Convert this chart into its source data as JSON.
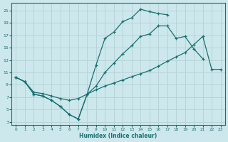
{
  "xlabel": "Humidex (Indice chaleur)",
  "bg_color": "#cce8ec",
  "grid_color": "#b8d4d8",
  "line_color": "#1a7070",
  "xlim": [
    -0.5,
    23.5
  ],
  "ylim": [
    2.5,
    22.2
  ],
  "xticks": [
    0,
    1,
    2,
    3,
    4,
    5,
    6,
    7,
    8,
    9,
    10,
    11,
    12,
    13,
    14,
    15,
    16,
    17,
    18,
    19,
    20,
    21,
    22,
    23
  ],
  "yticks": [
    3,
    5,
    7,
    9,
    11,
    13,
    15,
    17,
    19,
    21
  ],
  "curve_zigzag_x": [
    0,
    1,
    2,
    3,
    4,
    5,
    6,
    7,
    8,
    9,
    10,
    11,
    12,
    13,
    14,
    15,
    16,
    17
  ],
  "curve_zigzag_y": [
    10.2,
    9.5,
    7.5,
    7.2,
    6.5,
    5.5,
    4.2,
    3.5,
    7.5,
    12.2,
    16.5,
    17.5,
    19.2,
    19.8,
    21.2,
    20.8,
    20.5,
    20.3
  ],
  "curve_mid_x": [
    0,
    1,
    2,
    3,
    4,
    5,
    6,
    7,
    8,
    9,
    10,
    11,
    12,
    13,
    14,
    15,
    16,
    17,
    18,
    19,
    20,
    21
  ],
  "curve_mid_y": [
    10.2,
    9.5,
    7.5,
    7.2,
    6.5,
    5.5,
    4.2,
    3.5,
    7.5,
    8.8,
    11.0,
    12.5,
    14.0,
    15.3,
    16.8,
    17.2,
    18.5,
    18.5,
    16.5,
    16.8,
    14.8,
    13.2
  ],
  "curve_flat_x": [
    0,
    1,
    2,
    3,
    4,
    5,
    6,
    7,
    8,
    9,
    10,
    11,
    12,
    13,
    14,
    15,
    16,
    17,
    18,
    19,
    20,
    21,
    22,
    23
  ],
  "curve_flat_y": [
    10.2,
    9.5,
    7.8,
    7.6,
    7.2,
    6.8,
    6.5,
    6.8,
    7.5,
    8.2,
    8.8,
    9.3,
    9.8,
    10.3,
    10.8,
    11.3,
    12.0,
    12.8,
    13.5,
    14.2,
    15.5,
    16.8,
    11.5,
    11.5
  ]
}
